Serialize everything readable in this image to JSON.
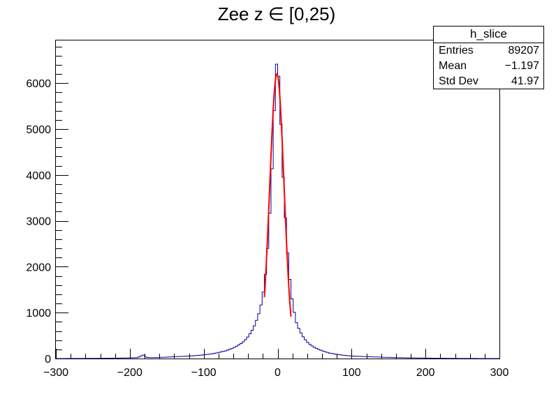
{
  "chart_data": {
    "type": "histogram",
    "title": "Zee z ∈ [0,25)",
    "xlabel": "",
    "ylabel": "",
    "xlim": [
      -300,
      300
    ],
    "ylim": [
      0,
      6930
    ],
    "x_ticks": [
      -300,
      -200,
      -100,
      0,
      100,
      200,
      300
    ],
    "x_tick_labels": [
      "−300",
      "−200",
      "−100",
      "0",
      "100",
      "200",
      "300"
    ],
    "y_ticks": [
      0,
      1000,
      2000,
      3000,
      4000,
      5000,
      6000
    ],
    "y_tick_labels": [
      "0",
      "1000",
      "2000",
      "3000",
      "4000",
      "5000",
      "6000"
    ],
    "bin_width": 3,
    "series": [
      {
        "name": "h_slice",
        "color": "#000099",
        "profile": "x:y pairs (bin centre, count)",
        "points": [
          [
            -300,
            0
          ],
          [
            -270,
            2
          ],
          [
            -240,
            5
          ],
          [
            -220,
            8
          ],
          [
            -200,
            15
          ],
          [
            -190,
            20
          ],
          [
            -181,
            80
          ],
          [
            -178,
            25
          ],
          [
            -170,
            20
          ],
          [
            -160,
            25
          ],
          [
            -150,
            30
          ],
          [
            -140,
            40
          ],
          [
            -130,
            45
          ],
          [
            -120,
            55
          ],
          [
            -110,
            65
          ],
          [
            -100,
            80
          ],
          [
            -90,
            100
          ],
          [
            -80,
            130
          ],
          [
            -70,
            170
          ],
          [
            -60,
            230
          ],
          [
            -50,
            320
          ],
          [
            -45,
            380
          ],
          [
            -40,
            480
          ],
          [
            -35,
            600
          ],
          [
            -30,
            760
          ],
          [
            -25,
            1000
          ],
          [
            -22,
            1200
          ],
          [
            -19,
            1500
          ],
          [
            -16,
            1900
          ],
          [
            -13,
            2500
          ],
          [
            -10,
            3300
          ],
          [
            -7,
            4300
          ],
          [
            -5,
            5200
          ],
          [
            -3,
            6000
          ],
          [
            -1,
            6550
          ],
          [
            1,
            6300
          ],
          [
            3,
            5700
          ],
          [
            5,
            4900
          ],
          [
            7,
            4100
          ],
          [
            10,
            3200
          ],
          [
            13,
            2400
          ],
          [
            16,
            1800
          ],
          [
            19,
            1350
          ],
          [
            22,
            1050
          ],
          [
            25,
            800
          ],
          [
            30,
            600
          ],
          [
            35,
            460
          ],
          [
            40,
            360
          ],
          [
            45,
            290
          ],
          [
            50,
            240
          ],
          [
            60,
            170
          ],
          [
            70,
            120
          ],
          [
            80,
            90
          ],
          [
            90,
            70
          ],
          [
            100,
            55
          ],
          [
            120,
            40
          ],
          [
            140,
            30
          ],
          [
            160,
            20
          ],
          [
            180,
            15
          ],
          [
            200,
            10
          ],
          [
            220,
            6
          ],
          [
            240,
            3
          ],
          [
            270,
            1
          ],
          [
            300,
            0
          ]
        ]
      },
      {
        "name": "gaussian fit",
        "color": "#ff0000",
        "function": "gaus",
        "constant": 6200,
        "mean": -1.0,
        "sigma": 9.7,
        "range": [
          -18,
          18
        ]
      }
    ],
    "stats_box": {
      "title": "h_slice",
      "rows": [
        {
          "label": "Entries",
          "value": "89207"
        },
        {
          "label": "Mean",
          "value": "−1.197"
        },
        {
          "label": "Std Dev",
          "value": "41.97"
        }
      ]
    }
  }
}
